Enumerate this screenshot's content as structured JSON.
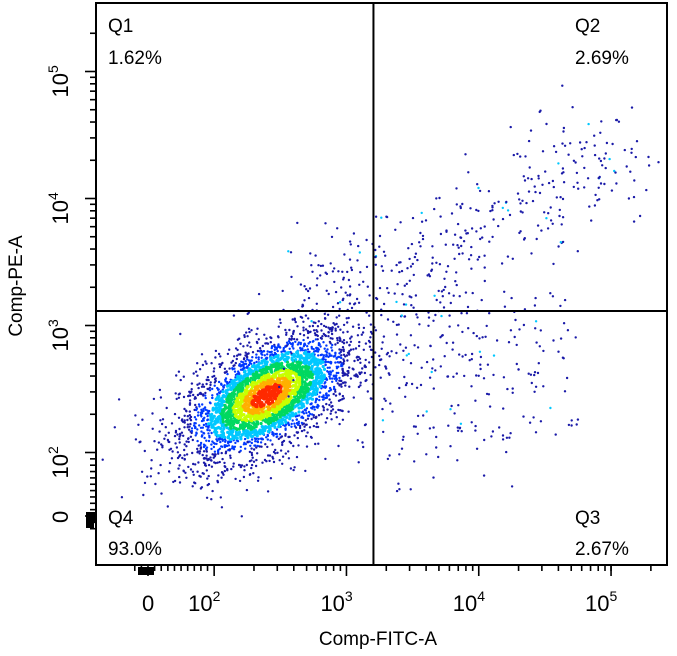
{
  "chart_data": {
    "type": "scatter",
    "subtype": "flow-cytometry-density-dot-plot",
    "xlabel": "Comp-FITC-A",
    "ylabel": "Comp-PE-A",
    "x_scale": "biexponential",
    "y_scale": "biexponential",
    "xlim": [
      -30,
      300000
    ],
    "ylim": [
      -30,
      300000
    ],
    "x_ticks": [
      {
        "value": 0,
        "base": "0",
        "exp": ""
      },
      {
        "value": 100,
        "base": "10",
        "exp": "2"
      },
      {
        "value": 1000,
        "base": "10",
        "exp": "3"
      },
      {
        "value": 10000,
        "base": "10",
        "exp": "4"
      },
      {
        "value": 100000,
        "base": "10",
        "exp": "5"
      }
    ],
    "y_ticks": [
      {
        "value": 0,
        "base": "0",
        "exp": ""
      },
      {
        "value": 100,
        "base": "10",
        "exp": "2"
      },
      {
        "value": 1000,
        "base": "10",
        "exp": "3"
      },
      {
        "value": 10000,
        "base": "10",
        "exp": "4"
      },
      {
        "value": 100000,
        "base": "10",
        "exp": "5"
      }
    ],
    "gate": {
      "x_threshold": 1600,
      "y_threshold": 1300
    },
    "quadrants": [
      {
        "id": "Q1",
        "name": "Q1",
        "percent": "1.62%",
        "position": "top-left"
      },
      {
        "id": "Q2",
        "name": "Q2",
        "percent": "2.69%",
        "position": "top-right"
      },
      {
        "id": "Q3",
        "name": "Q3",
        "percent": "2.67%",
        "position": "bottom-right"
      },
      {
        "id": "Q4",
        "name": "Q4",
        "percent": "93.0%",
        "position": "bottom-left"
      }
    ],
    "population": {
      "main_cluster_center": {
        "x": 250,
        "y": 280
      },
      "main_cluster_color_peak": "#ff2a00"
    },
    "colors": {
      "sparse": "#1a1aa8",
      "low": "#0038ff",
      "mid_low": "#00c8ff",
      "mid": "#00d860",
      "mid_high": "#c8ff00",
      "high": "#ffb000",
      "peak": "#ff2a00"
    }
  }
}
